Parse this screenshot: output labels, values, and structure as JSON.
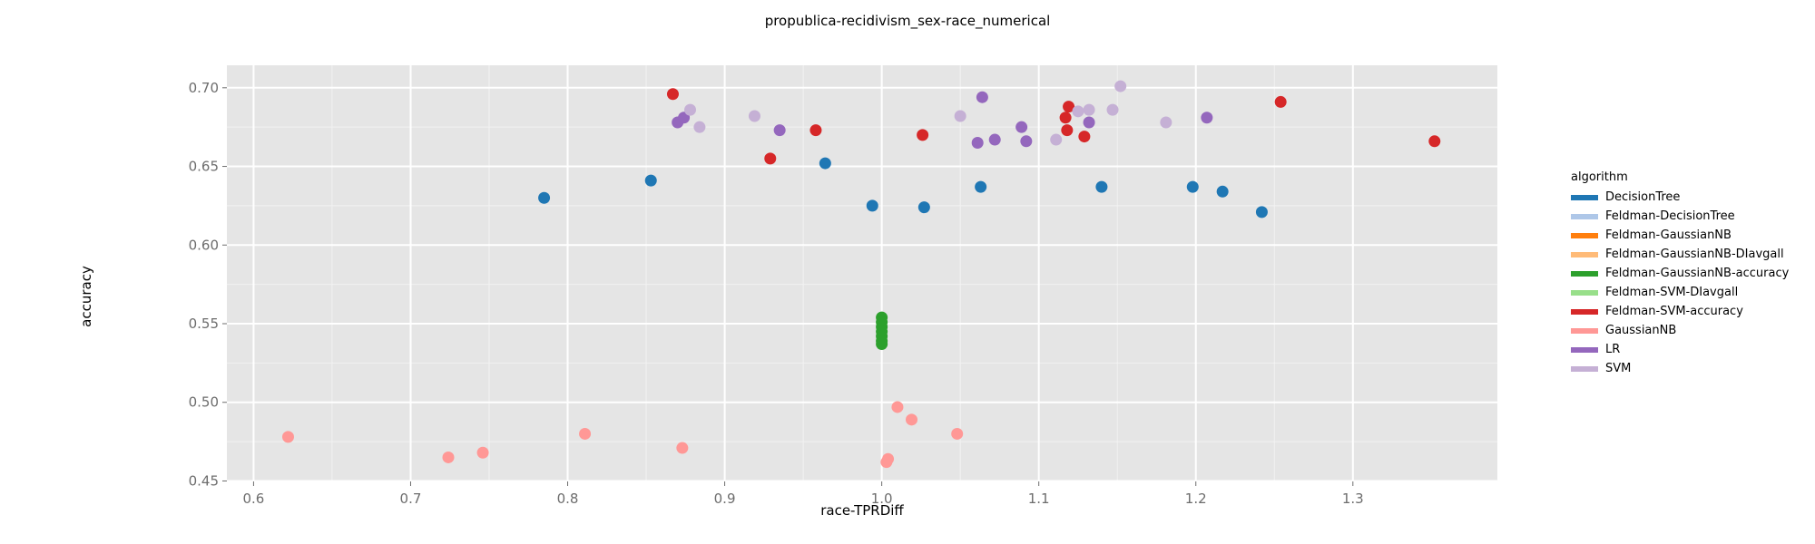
{
  "chart_data": {
    "type": "scatter",
    "title": "propublica-recidivism_sex-race_numerical",
    "xlabel": "race-TPRDiff",
    "ylabel": "accuracy",
    "xlim": [
      0.583,
      1.392
    ],
    "ylim": [
      0.4497,
      0.7143
    ],
    "xticks": [
      "0.6",
      "0.7",
      "0.8",
      "0.9",
      "1.0",
      "1.1",
      "1.2",
      "1.3"
    ],
    "xtick_values": [
      0.6,
      0.7,
      0.8,
      0.9,
      1.0,
      1.1,
      1.2,
      1.3
    ],
    "yticks": [
      "0.45",
      "0.50",
      "0.55",
      "0.60",
      "0.65",
      "0.70"
    ],
    "ytick_values": [
      0.45,
      0.5,
      0.55,
      0.6,
      0.65,
      0.7
    ],
    "grid": true,
    "legend_title": "algorithm",
    "legend_position": "right",
    "series": [
      {
        "name": "DecisionTree",
        "color": "#1f77b4",
        "points": [
          [
            0.785,
            0.63
          ],
          [
            0.853,
            0.641
          ],
          [
            0.964,
            0.652
          ],
          [
            0.994,
            0.625
          ],
          [
            1.027,
            0.624
          ],
          [
            1.063,
            0.637
          ],
          [
            1.14,
            0.637
          ],
          [
            1.198,
            0.637
          ],
          [
            1.217,
            0.634
          ],
          [
            1.242,
            0.621
          ]
        ]
      },
      {
        "name": "Feldman-DecisionTree",
        "color": "#aec7e8",
        "points": []
      },
      {
        "name": "Feldman-GaussianNB",
        "color": "#ff7f0e",
        "points": []
      },
      {
        "name": "Feldman-GaussianNB-DIavgall",
        "color": "#ffbb78",
        "points": []
      },
      {
        "name": "Feldman-GaussianNB-accuracy",
        "color": "#2ca02c",
        "points": [
          [
            1.0,
            0.554
          ],
          [
            1.0,
            0.551
          ],
          [
            1.0,
            0.548
          ],
          [
            1.0,
            0.545
          ],
          [
            1.0,
            0.542
          ],
          [
            1.0,
            0.539
          ],
          [
            1.0,
            0.537
          ]
        ]
      },
      {
        "name": "Feldman-SVM-DIavgall",
        "color": "#98df8a",
        "points": []
      },
      {
        "name": "Feldman-SVM-accuracy",
        "color": "#d62728",
        "points": [
          [
            0.867,
            0.696
          ],
          [
            0.929,
            0.655
          ],
          [
            0.958,
            0.673
          ],
          [
            1.026,
            0.67
          ],
          [
            1.119,
            0.688
          ],
          [
            1.117,
            0.681
          ],
          [
            1.118,
            0.673
          ],
          [
            1.129,
            0.669
          ],
          [
            1.254,
            0.691
          ],
          [
            1.352,
            0.666
          ]
        ]
      },
      {
        "name": "GaussianNB",
        "color": "#ff9896",
        "points": [
          [
            0.622,
            0.478
          ],
          [
            0.724,
            0.465
          ],
          [
            0.746,
            0.468
          ],
          [
            0.811,
            0.48
          ],
          [
            0.873,
            0.471
          ],
          [
            1.003,
            0.462
          ],
          [
            1.004,
            0.464
          ],
          [
            1.01,
            0.497
          ],
          [
            1.019,
            0.489
          ],
          [
            1.048,
            0.48
          ]
        ]
      },
      {
        "name": "LR",
        "color": "#9467bd",
        "points": [
          [
            0.87,
            0.678
          ],
          [
            0.874,
            0.681
          ],
          [
            0.935,
            0.673
          ],
          [
            1.061,
            0.665
          ],
          [
            1.064,
            0.694
          ],
          [
            1.072,
            0.667
          ],
          [
            1.089,
            0.675
          ],
          [
            1.092,
            0.666
          ],
          [
            1.132,
            0.678
          ],
          [
            1.207,
            0.681
          ]
        ]
      },
      {
        "name": "SVM",
        "color": "#c5b0d5",
        "points": [
          [
            0.878,
            0.686
          ],
          [
            0.884,
            0.675
          ],
          [
            0.919,
            0.682
          ],
          [
            1.05,
            0.682
          ],
          [
            1.111,
            0.667
          ],
          [
            1.125,
            0.685
          ],
          [
            1.132,
            0.686
          ],
          [
            1.147,
            0.686
          ],
          [
            1.152,
            0.701
          ],
          [
            1.181,
            0.678
          ]
        ]
      }
    ]
  }
}
